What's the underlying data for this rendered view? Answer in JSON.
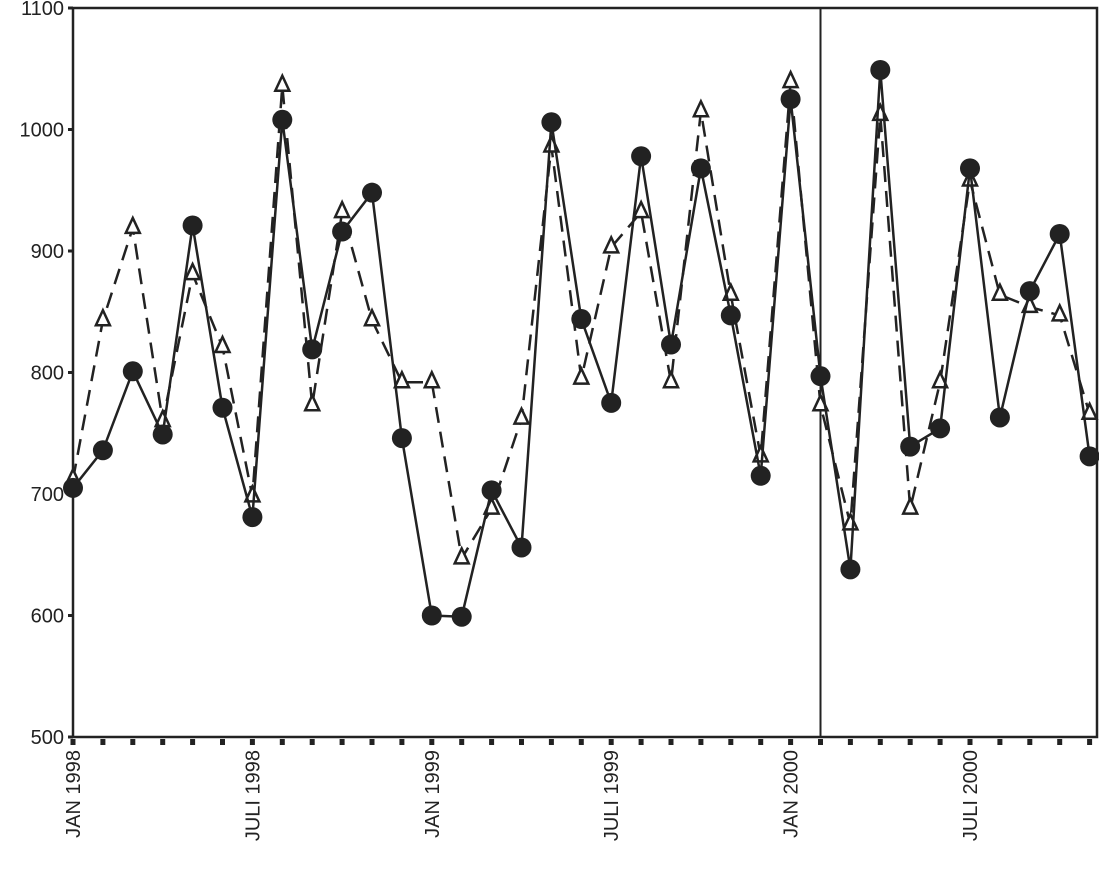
{
  "chart_data": {
    "type": "line",
    "title": "",
    "xlabel": "",
    "ylabel": "",
    "ylim": [
      500,
      1100
    ],
    "yticks": [
      500,
      600,
      700,
      800,
      900,
      1000,
      1100
    ],
    "x_start": "1998-01",
    "x_end": "2000-11",
    "x_tick_labels": [
      {
        "month": "1998-01",
        "label": "JAN 1998"
      },
      {
        "month": "1998-07",
        "label": "JULI 1998"
      },
      {
        "month": "1999-01",
        "label": "JAN 1999"
      },
      {
        "month": "1999-07",
        "label": "JULI 1999"
      },
      {
        "month": "2000-01",
        "label": "JAN 2000"
      },
      {
        "month": "2000-07",
        "label": "JULI 2000"
      }
    ],
    "vertical_marker": "2000-02",
    "grid": false,
    "legend": "none",
    "series": [
      {
        "style": "solid line, filled circle markers",
        "color": "#222222",
        "values": [
          705,
          736,
          801,
          749,
          921,
          771,
          681,
          1008,
          819,
          916,
          948,
          746,
          600,
          599,
          703,
          656,
          1006,
          844,
          775,
          978,
          823,
          968,
          847,
          715,
          1025,
          797,
          638,
          1049,
          739,
          754,
          968,
          763,
          867,
          914,
          731
        ]
      },
      {
        "style": "dashed line, open triangle markers",
        "color": "#222222",
        "values": [
          712,
          843,
          919,
          760,
          881,
          821,
          698,
          1036,
          773,
          932,
          843,
          792,
          792,
          647,
          688,
          762,
          986,
          795,
          903,
          932,
          792,
          1015,
          864,
          731,
          1039,
          773,
          675,
          1012,
          688,
          792,
          958,
          864,
          854,
          847,
          766
        ]
      }
    ]
  }
}
